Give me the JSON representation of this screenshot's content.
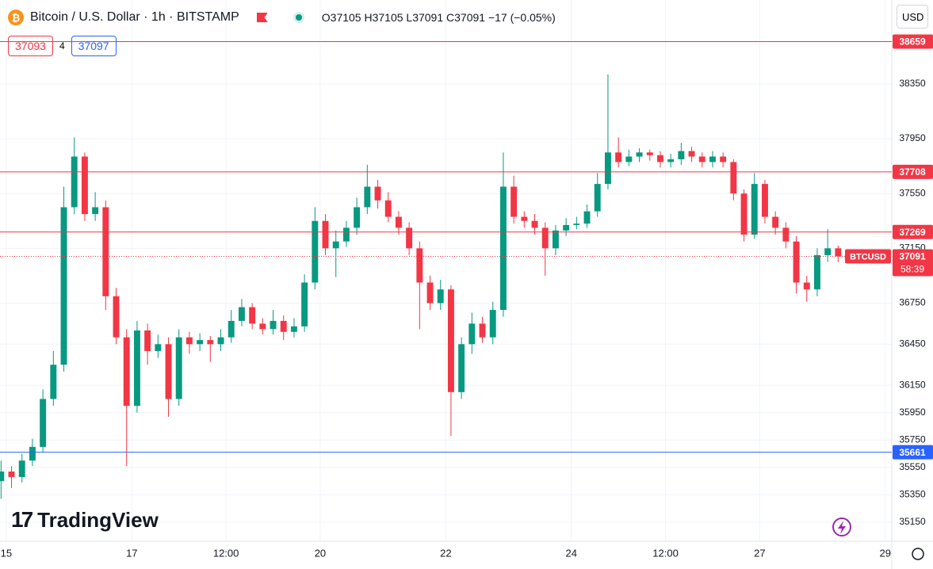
{
  "header": {
    "title": "Bitcoin / U.S. Dollar · 1h · BITSTAMP",
    "ohlc": "O37105 H37105 L37091 C37091 −17 (−0.05%)",
    "bid": "37093",
    "spread": "4",
    "ask": "37097",
    "currency": "USD",
    "brand": "TradingView"
  },
  "chart_data": {
    "type": "candlestick",
    "up_color": "#089981",
    "down_color": "#f23645",
    "grid": true,
    "xlim": [
      -2.4,
      338.5
    ],
    "xticks": [
      {
        "value": 0,
        "label": "15"
      },
      {
        "value": 48,
        "label": "17"
      },
      {
        "value": 84,
        "label": "12:00"
      },
      {
        "value": 120,
        "label": "20"
      },
      {
        "value": 168,
        "label": "22"
      },
      {
        "value": 216,
        "label": "24"
      },
      {
        "value": 252,
        "label": "12:00"
      },
      {
        "value": 288,
        "label": "27"
      },
      {
        "value": 336,
        "label": "29"
      }
    ],
    "ylim": [
      35011,
      38963
    ],
    "yticks": [
      35150,
      35350,
      35550,
      35750,
      35950,
      36150,
      36450,
      36750,
      37150,
      37550,
      37950,
      38350
    ],
    "x": [
      -2,
      2,
      6,
      10,
      14,
      18,
      22,
      26,
      30,
      34,
      38,
      42,
      46,
      50,
      54,
      58,
      62,
      66,
      70,
      74,
      78,
      82,
      86,
      90,
      94,
      98,
      102,
      106,
      110,
      114,
      118,
      122,
      126,
      130,
      134,
      138,
      142,
      146,
      150,
      154,
      158,
      162,
      166,
      170,
      174,
      178,
      182,
      186,
      190,
      194,
      198,
      202,
      206,
      210,
      214,
      218,
      222,
      226,
      230,
      234,
      238,
      242,
      246,
      250,
      254,
      258,
      262,
      266,
      270,
      274,
      278,
      282,
      286,
      290,
      294,
      298,
      302,
      306,
      310,
      314,
      318
    ],
    "open": [
      35450,
      35520,
      35480,
      35600,
      35700,
      36050,
      36300,
      37450,
      37820,
      37400,
      37450,
      36800,
      36500,
      36000,
      36550,
      36400,
      36450,
      36050,
      36500,
      36450,
      36480,
      36450,
      36500,
      36620,
      36720,
      36600,
      36560,
      36620,
      36540,
      36580,
      36900,
      37350,
      37150,
      37200,
      37300,
      37450,
      37600,
      37500,
      37380,
      37300,
      37150,
      36900,
      36750,
      36850,
      36100,
      36450,
      36600,
      36500,
      36700,
      37600,
      37380,
      37350,
      37300,
      37150,
      37280,
      37320,
      37330,
      37420,
      37620,
      37850,
      37780,
      37820,
      37850,
      37830,
      37780,
      37800,
      37860,
      37820,
      37780,
      37820,
      37780,
      37550,
      37250,
      37620,
      37380,
      37300,
      37200,
      36900,
      36850,
      37100,
      37150
    ],
    "high": [
      35600,
      35560,
      35650,
      35760,
      36120,
      36400,
      37600,
      37960,
      37850,
      37560,
      37500,
      36860,
      36560,
      36620,
      36600,
      36520,
      36500,
      36560,
      36540,
      36530,
      36510,
      36560,
      36700,
      36780,
      36750,
      36640,
      36700,
      36660,
      36640,
      36960,
      37450,
      37400,
      37280,
      37350,
      37520,
      37760,
      37650,
      37560,
      37420,
      37340,
      37200,
      36950,
      36920,
      36880,
      36500,
      36680,
      36650,
      36760,
      37850,
      37680,
      37420,
      37400,
      37340,
      37320,
      37370,
      37380,
      37470,
      37700,
      38420,
      37960,
      37870,
      37880,
      37870,
      37860,
      37840,
      37920,
      37890,
      37850,
      37860,
      37850,
      37800,
      37580,
      37700,
      37650,
      37420,
      37340,
      37240,
      36950,
      37150,
      37290,
      37170
    ],
    "low": [
      35320,
      35400,
      35440,
      35560,
      35660,
      36000,
      36250,
      37400,
      37350,
      37350,
      36700,
      36450,
      35560,
      35950,
      36300,
      36350,
      35920,
      36000,
      36380,
      36400,
      36320,
      36400,
      36460,
      36580,
      36560,
      36520,
      36520,
      36480,
      36500,
      36540,
      36850,
      37100,
      36940,
      37160,
      37250,
      37400,
      37440,
      37340,
      37250,
      37100,
      36560,
      36700,
      36700,
      35780,
      36050,
      36380,
      36460,
      36450,
      36650,
      37330,
      37300,
      37250,
      36950,
      37100,
      37240,
      37290,
      37300,
      37380,
      37580,
      37740,
      37750,
      37780,
      37790,
      37740,
      37740,
      37760,
      37780,
      37740,
      37740,
      37740,
      37500,
      37200,
      37220,
      37330,
      37250,
      37150,
      36820,
      36760,
      36800,
      37050,
      37050
    ],
    "close": [
      35520,
      35480,
      35600,
      35700,
      36050,
      36300,
      37450,
      37820,
      37400,
      37450,
      36800,
      36500,
      36000,
      36550,
      36400,
      36450,
      36050,
      36500,
      36450,
      36480,
      36450,
      36500,
      36620,
      36720,
      36600,
      36560,
      36620,
      36540,
      36580,
      36900,
      37350,
      37150,
      37200,
      37300,
      37450,
      37600,
      37500,
      37380,
      37300,
      37150,
      36900,
      36750,
      36850,
      36100,
      36450,
      36600,
      36500,
      36700,
      37600,
      37380,
      37350,
      37300,
      37150,
      37280,
      37320,
      37330,
      37420,
      37620,
      37850,
      37780,
      37820,
      37850,
      37830,
      37780,
      37800,
      37860,
      37820,
      37780,
      37820,
      37780,
      37550,
      37250,
      37620,
      37380,
      37300,
      37200,
      36900,
      36850,
      37100,
      37150,
      37091
    ],
    "levels": [
      {
        "value": 38659,
        "color": "#f23645"
      },
      {
        "value": 37708,
        "color": "#f23645"
      },
      {
        "value": 37269,
        "color": "#f23645"
      },
      {
        "value": 35661,
        "color": "#2962ff"
      }
    ],
    "last_price": {
      "symbol": "BTCUSD",
      "value": 37091,
      "countdown": "58:39",
      "color": "#f23645"
    }
  }
}
